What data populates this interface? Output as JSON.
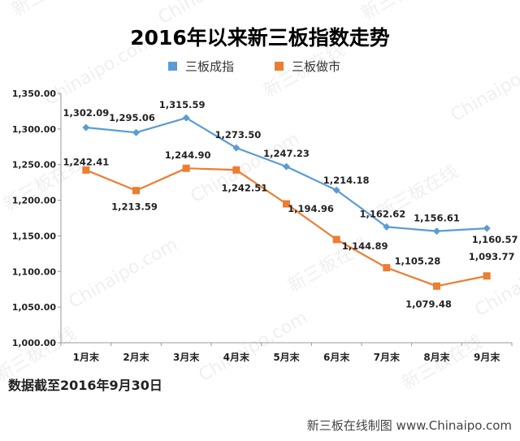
{
  "chart_data": {
    "type": "line",
    "title": "2016年以来新三板指数走势",
    "categories": [
      "1月末",
      "2月末",
      "3月末",
      "4月末",
      "5月末",
      "6月末",
      "7月末",
      "8月末",
      "9月末"
    ],
    "series": [
      {
        "name": "三板成指",
        "color": "#5b9bd5",
        "marker": "diamond",
        "values": [
          1302.09,
          1295.06,
          1315.59,
          1273.5,
          1247.23,
          1214.18,
          1162.62,
          1156.61,
          1160.57
        ],
        "labels": [
          "1,302.09",
          "1,295.06",
          "1,315.59",
          "1,273.50",
          "1,247.23",
          "1,214.18",
          "1,162.62",
          "1,156.61",
          "1,160.57"
        ]
      },
      {
        "name": "三板做市",
        "color": "#ed7d31",
        "marker": "square",
        "values": [
          1242.41,
          1213.59,
          1244.9,
          1242.51,
          1194.96,
          1144.89,
          1105.28,
          1079.48,
          1093.77
        ],
        "labels": [
          "1,242.41",
          "1,213.59",
          "1,244.90",
          "1,242.51",
          "1,194.96",
          "1,144.89",
          "1,105.28",
          "1,079.48",
          "1,093.77"
        ]
      }
    ],
    "ylim": [
      1000,
      1350
    ],
    "ytick_values": [
      1000,
      1050,
      1100,
      1150,
      1200,
      1250,
      1300,
      1350
    ],
    "yticks": [
      "1,000.00",
      "1,050.00",
      "1,100.00",
      "1,150.00",
      "1,200.00",
      "1,250.00",
      "1,300.00",
      "1,350.00"
    ],
    "grid": false,
    "legend": "top"
  },
  "note": "数据截至2016年9月30日",
  "footer": "新三板在线制图 www.Chinaipo.com",
  "watermark_text": [
    "新三板在线",
    "Chinaipo.com"
  ]
}
